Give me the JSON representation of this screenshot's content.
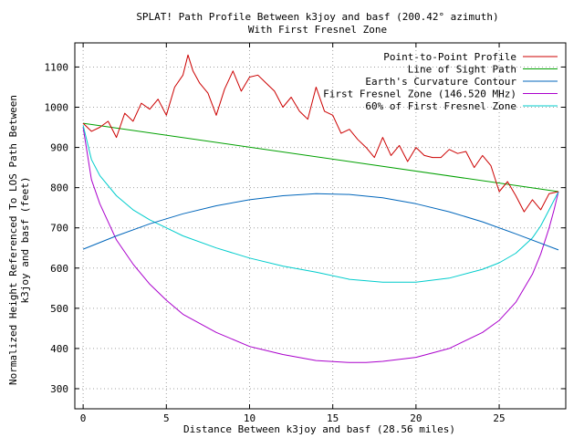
{
  "chart_data": {
    "type": "line",
    "title": "SPLAT! Path Profile Between k3joy and basf (200.42° azimuth)",
    "subtitle": "With First Fresnel Zone",
    "xlabel": "Distance Between k3joy and basf (28.56 miles)",
    "ylabel_line1": "Normalized Height Referenced To LOS Path Between",
    "ylabel_line2": "k3joy and basf (feet)",
    "xlim": [
      -0.5,
      29.0
    ],
    "ylim": [
      250,
      1160
    ],
    "x_ticks": [
      0,
      5,
      10,
      15,
      20,
      25
    ],
    "y_ticks": [
      300,
      400,
      500,
      600,
      700,
      800,
      900,
      1000,
      1100
    ],
    "grid": true,
    "legend_position": "top-right",
    "colors": {
      "profile": "#cc0000",
      "los": "#00a000",
      "curvature": "#0066bb",
      "fresnel": "#aa00cc",
      "fresnel60": "#00cccc"
    },
    "series": [
      {
        "name": "Point-to-Point Profile",
        "key": "profile",
        "x": [
          0,
          0.5,
          1.0,
          1.5,
          2.0,
          2.5,
          3.0,
          3.5,
          4.0,
          4.5,
          5.0,
          5.5,
          6.0,
          6.3,
          6.6,
          7.0,
          7.5,
          8.0,
          8.5,
          9.0,
          9.5,
          10.0,
          10.5,
          11.0,
          11.5,
          12.0,
          12.5,
          13.0,
          13.5,
          14.0,
          14.5,
          15.0,
          15.5,
          16.0,
          16.5,
          17.0,
          17.5,
          18.0,
          18.5,
          19.0,
          19.5,
          20.0,
          20.5,
          21.0,
          21.5,
          22.0,
          22.5,
          23.0,
          23.5,
          24.0,
          24.5,
          25.0,
          25.5,
          26.0,
          26.5,
          27.0,
          27.5,
          28.0,
          28.56
        ],
        "y": [
          960,
          940,
          950,
          965,
          925,
          985,
          965,
          1010,
          995,
          1020,
          980,
          1050,
          1080,
          1130,
          1090,
          1060,
          1035,
          980,
          1045,
          1090,
          1040,
          1075,
          1080,
          1060,
          1040,
          1000,
          1025,
          990,
          970,
          1050,
          990,
          980,
          935,
          945,
          920,
          900,
          875,
          925,
          880,
          905,
          865,
          900,
          880,
          875,
          875,
          895,
          885,
          890,
          850,
          880,
          855,
          790,
          815,
          780,
          740,
          770,
          745,
          785,
          790
        ]
      },
      {
        "name": "Line of Sight Path",
        "key": "los",
        "x": [
          0,
          28.56
        ],
        "y": [
          960,
          790
        ]
      },
      {
        "name": "Earth's Curvature Contour",
        "key": "curvature",
        "x": [
          0,
          2,
          4,
          6,
          8,
          10,
          12,
          14,
          16,
          18,
          20,
          22,
          24,
          26,
          28.56
        ],
        "y": [
          647,
          680,
          710,
          735,
          755,
          770,
          780,
          785,
          783,
          775,
          760,
          740,
          715,
          685,
          645
        ]
      },
      {
        "name": "First Fresnel Zone (146.520 MHz)",
        "key": "fresnel",
        "x": [
          0,
          0.5,
          1,
          2,
          3,
          4,
          5,
          6,
          8,
          10,
          12,
          14,
          16,
          17,
          18,
          20,
          22,
          24,
          25,
          26,
          27,
          27.5,
          28,
          28.3,
          28.56
        ],
        "y": [
          950,
          820,
          760,
          670,
          610,
          560,
          520,
          485,
          440,
          405,
          385,
          370,
          365,
          365,
          368,
          378,
          400,
          440,
          470,
          515,
          585,
          635,
          700,
          745,
          790
        ]
      },
      {
        "name": "60% of First Fresnel Zone",
        "key": "fresnel60",
        "x": [
          0,
          0.5,
          1,
          2,
          3,
          4,
          5,
          6,
          8,
          10,
          12,
          14,
          16,
          18,
          20,
          22,
          24,
          25,
          26,
          27,
          27.5,
          28,
          28.56
        ],
        "y": [
          955,
          870,
          830,
          780,
          745,
          720,
          700,
          680,
          650,
          625,
          605,
          590,
          572,
          565,
          565,
          575,
          597,
          613,
          637,
          675,
          705,
          745,
          790
        ]
      }
    ]
  }
}
